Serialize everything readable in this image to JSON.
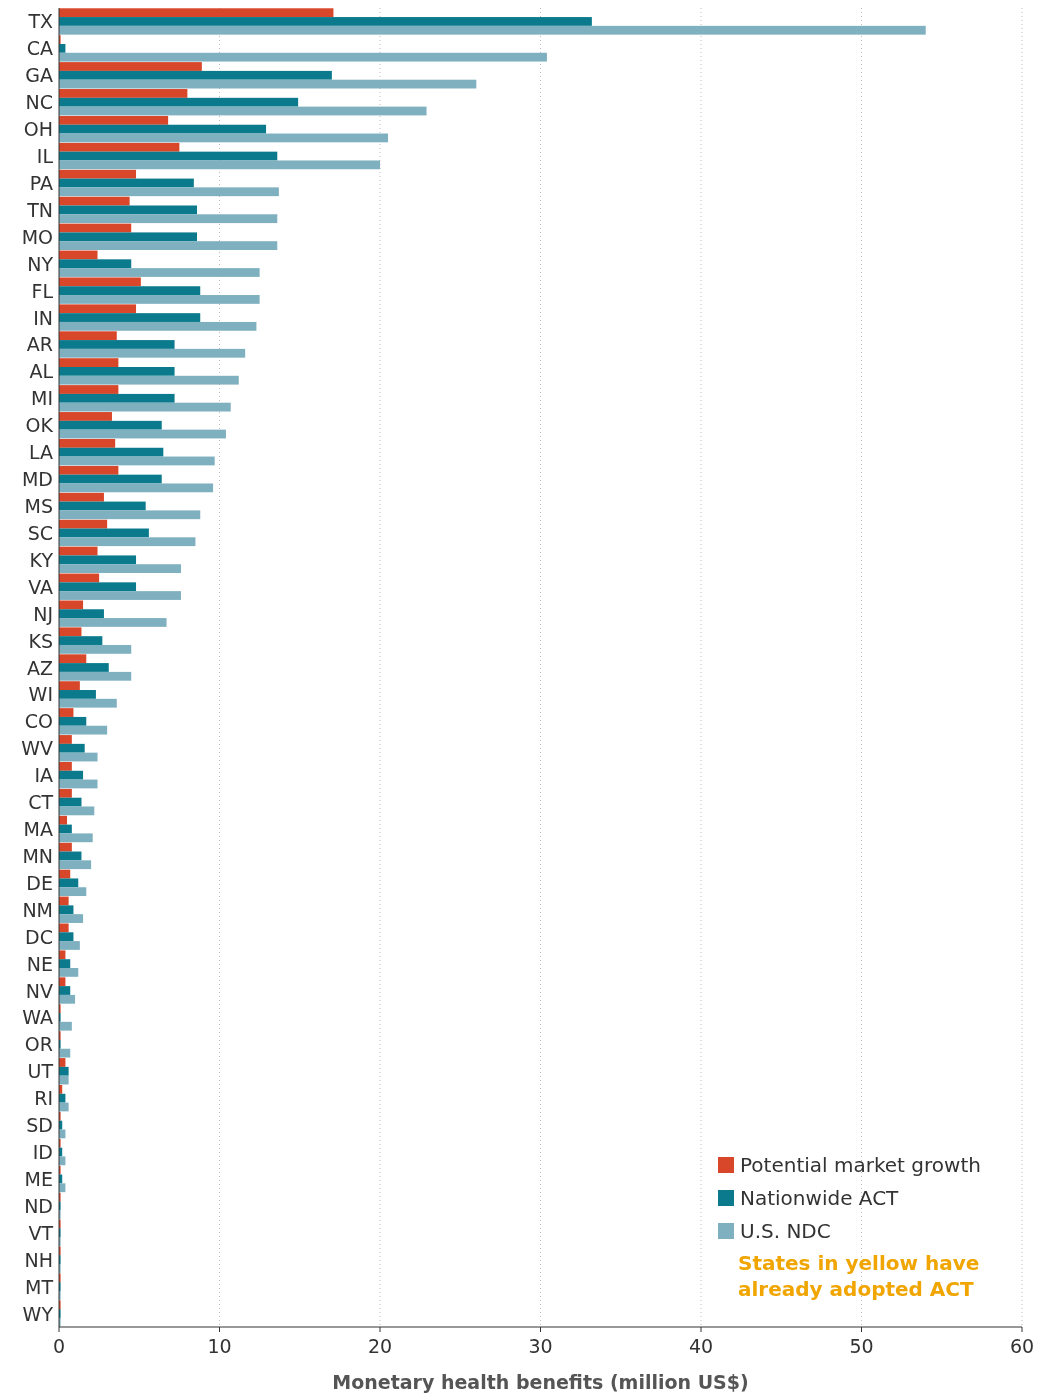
{
  "chart_data": {
    "type": "bar",
    "orientation": "horizontal",
    "xlabel": "Monetary health benefits (million US$)",
    "categories": [
      "TX",
      "CA",
      "GA",
      "NC",
      "OH",
      "IL",
      "PA",
      "TN",
      "MO",
      "NY",
      "FL",
      "IN",
      "AR",
      "AL",
      "MI",
      "OK",
      "LA",
      "MD",
      "MS",
      "SC",
      "KY",
      "VA",
      "NJ",
      "KS",
      "AZ",
      "WI",
      "CO",
      "WV",
      "IA",
      "CT",
      "MA",
      "MN",
      "DE",
      "NM",
      "DC",
      "NE",
      "NV",
      "WA",
      "OR",
      "UT",
      "RI",
      "SD",
      "ID",
      "ME",
      "ND",
      "VT",
      "NH",
      "MT",
      "WY"
    ],
    "series": [
      {
        "name": "Potential market growth",
        "color": "#d9472b",
        "values": [
          17.1,
          0.1,
          8.9,
          8.0,
          6.8,
          7.5,
          4.8,
          4.4,
          4.5,
          2.4,
          5.1,
          4.8,
          3.6,
          3.7,
          3.7,
          3.3,
          3.5,
          3.7,
          2.8,
          3.0,
          2.4,
          2.5,
          1.5,
          1.4,
          1.7,
          1.3,
          0.9,
          0.8,
          0.8,
          0.8,
          0.5,
          0.8,
          0.7,
          0.6,
          0.6,
          0.4,
          0.4,
          0.1,
          0.1,
          0.4,
          0.2,
          0.1,
          0.1,
          0.1,
          0.1,
          0.1,
          0.1,
          0.1,
          0.1
        ]
      },
      {
        "name": "Nationwide ACT",
        "color": "#0a7a8c",
        "values": [
          33.2,
          0.4,
          17.0,
          14.9,
          12.9,
          13.6,
          8.4,
          8.6,
          8.6,
          4.5,
          8.8,
          8.8,
          7.2,
          7.2,
          7.2,
          6.4,
          6.5,
          6.4,
          5.4,
          5.6,
          4.8,
          4.8,
          2.8,
          2.7,
          3.1,
          2.3,
          1.7,
          1.6,
          1.5,
          1.4,
          0.8,
          1.4,
          1.2,
          0.9,
          0.9,
          0.7,
          0.7,
          0.1,
          0.1,
          0.6,
          0.4,
          0.2,
          0.2,
          0.2,
          0.1,
          0.1,
          0.1,
          0.1,
          0.1
        ]
      },
      {
        "name": "U.S. NDC",
        "color": "#7fb0bf",
        "values": [
          54.0,
          30.4,
          26.0,
          22.9,
          20.5,
          20.0,
          13.7,
          13.6,
          13.6,
          12.5,
          12.5,
          12.3,
          11.6,
          11.2,
          10.7,
          10.4,
          9.7,
          9.6,
          8.8,
          8.5,
          7.6,
          7.6,
          6.7,
          4.5,
          4.5,
          3.6,
          3.0,
          2.4,
          2.4,
          2.2,
          2.1,
          2.0,
          1.7,
          1.5,
          1.3,
          1.2,
          1.0,
          0.8,
          0.7,
          0.6,
          0.6,
          0.4,
          0.4,
          0.4,
          0.1,
          0.1,
          0.1,
          0.1,
          0.1
        ]
      }
    ],
    "xlim": [
      0,
      60
    ],
    "xticks": [
      0,
      10,
      20,
      30,
      40,
      50,
      60
    ],
    "grid": "x",
    "legend": "bottom right",
    "annotations": [
      "States in yellow have already adopted ACT"
    ]
  }
}
